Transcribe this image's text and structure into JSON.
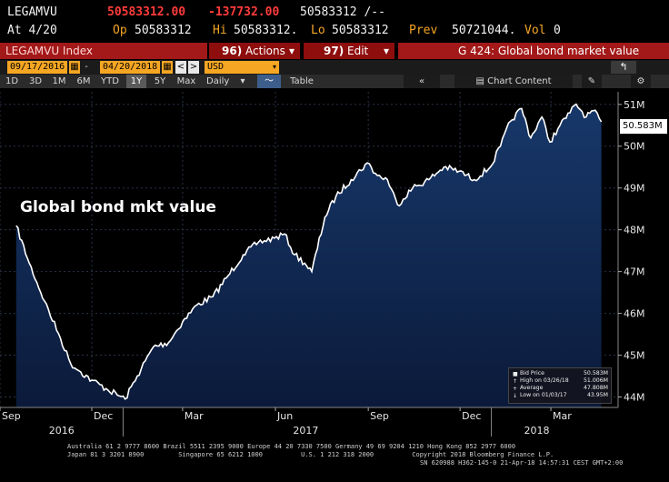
{
  "quote": {
    "ticker": "LEGAMVU",
    "last": "50583312.00",
    "change": "-137732.00",
    "bid_ask": "50583312 /--",
    "at_label": "At 4/20",
    "op_label": "Op",
    "op_value": "50583312",
    "hi_label": "Hi",
    "hi_value": "50583312.",
    "lo_label": "Lo",
    "lo_value": "50583312",
    "prev_label": "Prev",
    "prev_value": "50721044.",
    "vol_label": "Vol",
    "vol_value": "0"
  },
  "menubar": {
    "index_label": "LEGAMVU Index",
    "actions_num": "96)",
    "actions_label": "Actions",
    "actions_arrow": "▾",
    "edit_num": "97)",
    "edit_label": "Edit",
    "edit_arrow": "▾",
    "title": "G 424: Global bond market value"
  },
  "daterow": {
    "start_date": "09/17/2016",
    "dash": "-",
    "end_date": "04/20/2018",
    "cal_icon": "▦",
    "prev_icon": "<",
    "next_icon": ">",
    "currency": "USD",
    "dropdown_icon": "▾",
    "back_icon": "↰"
  },
  "toolbar": {
    "periods": [
      "1D",
      "3D",
      "1M",
      "6M",
      "YTD",
      "1Y",
      "5Y",
      "Max"
    ],
    "selected_period": "1Y",
    "frequency": "Daily",
    "frequency_arrow": "▾",
    "chart_type_icon": "〜",
    "table_label": "Table",
    "collapse_icon": "«",
    "chart_content_icon": "▤",
    "chart_content_label": "Chart Content",
    "edit_icon": "✎",
    "settings_icon": "⚙"
  },
  "annotation": "Global bond mkt value",
  "price_badge": "50.583M",
  "legend": {
    "rows": [
      {
        "marker": "■",
        "label": "Bid Price",
        "value": "50.583M"
      },
      {
        "marker": "↑",
        "label": "High on 03/26/18",
        "value": "51.006M"
      },
      {
        "marker": "+",
        "label": "Average",
        "value": "47.808M"
      },
      {
        "marker": "↓",
        "label": "Low on 01/03/17",
        "value": "43.95M"
      }
    ]
  },
  "footer": {
    "line1": "Australia 61 2 9777 8600 Brazil 5511 2395 9000 Europe 44 20 7330 7500 Germany 49 69 9204 1210 Hong Kong 852 2977 6000",
    "line2": "Japan 81 3 3201 8900         Singapore 65 6212 1000          U.S. 1 212 318 2000          Copyright 2018 Bloomberg Finance L.P.",
    "line3": "SN 620988 H362-145-0 21-Apr-18 14:57:31 CEST GMT+2:00"
  },
  "colors": {
    "line": "#ffffff",
    "fill_top": "#17386a",
    "fill_bottom": "#0b1a3a",
    "background": "#000000",
    "menu_red": "#a31818",
    "accent_amber": "#f5a623"
  },
  "chart_data": {
    "type": "area",
    "title": "",
    "xlabel": "",
    "ylabel": "",
    "y_unit": "M",
    "ylim": [
      43.75,
      51.3
    ],
    "y_ticks": [
      44,
      45,
      46,
      47,
      48,
      49,
      50,
      51
    ],
    "y_tick_labels": [
      "44M",
      "45M",
      "46M",
      "47M",
      "48M",
      "49M",
      "50M",
      "51M"
    ],
    "xlim": [
      "2016-09-17",
      "2018-04-20"
    ],
    "x_ticks": [
      {
        "date": "2016-09-01",
        "label": "Sep"
      },
      {
        "date": "2016-12-01",
        "label": "Dec"
      },
      {
        "date": "2017-03-01",
        "label": "Mar"
      },
      {
        "date": "2017-06-01",
        "label": "Jun"
      },
      {
        "date": "2017-09-01",
        "label": "Sep"
      },
      {
        "date": "2017-12-01",
        "label": "Dec"
      },
      {
        "date": "2018-03-01",
        "label": "Mar"
      }
    ],
    "year_labels": [
      {
        "date": "2016-11-01",
        "label": "2016"
      },
      {
        "date": "2017-07-01",
        "label": "2017"
      },
      {
        "date": "2018-02-15",
        "label": "2018"
      }
    ],
    "grid": true,
    "series": [
      {
        "name": "Bid Price",
        "x": [
          "2016-09-17",
          "2016-09-30",
          "2016-10-15",
          "2016-10-31",
          "2016-11-10",
          "2016-11-20",
          "2016-12-01",
          "2016-12-15",
          "2017-01-03",
          "2017-01-15",
          "2017-01-31",
          "2017-02-15",
          "2017-03-01",
          "2017-03-15",
          "2017-03-31",
          "2017-04-15",
          "2017-04-30",
          "2017-05-15",
          "2017-05-31",
          "2017-06-10",
          "2017-06-20",
          "2017-06-30",
          "2017-07-07",
          "2017-07-20",
          "2017-07-31",
          "2017-08-15",
          "2017-08-31",
          "2017-09-10",
          "2017-09-20",
          "2017-09-30",
          "2017-10-15",
          "2017-10-31",
          "2017-11-15",
          "2017-11-30",
          "2017-12-15",
          "2017-12-31",
          "2018-01-10",
          "2018-01-20",
          "2018-01-31",
          "2018-02-09",
          "2018-02-20",
          "2018-02-28",
          "2018-03-10",
          "2018-03-20",
          "2018-03-26",
          "2018-04-05",
          "2018-04-12",
          "2018-04-20"
        ],
        "values": [
          48.1,
          47.2,
          46.3,
          45.4,
          44.8,
          44.6,
          44.4,
          44.2,
          43.95,
          44.5,
          45.2,
          45.3,
          45.8,
          46.2,
          46.4,
          46.9,
          47.4,
          47.7,
          47.8,
          47.9,
          47.4,
          47.2,
          47.0,
          48.3,
          48.8,
          49.2,
          49.6,
          49.3,
          49.2,
          48.6,
          49.0,
          49.2,
          49.5,
          49.4,
          49.2,
          49.5,
          50.0,
          50.6,
          50.9,
          50.2,
          50.7,
          50.1,
          50.5,
          50.8,
          51.006,
          50.7,
          50.85,
          50.583
        ]
      }
    ],
    "stats": {
      "bid_price": 50.583,
      "high": {
        "date": "03/26/18",
        "value": 51.006
      },
      "average": 47.808,
      "low": {
        "date": "01/03/17",
        "value": 43.95
      }
    }
  }
}
